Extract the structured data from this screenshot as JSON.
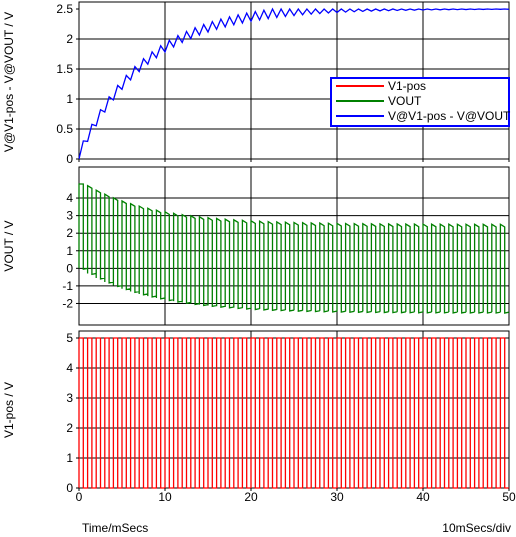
{
  "colors": {
    "v1pos": "#ff0000",
    "vout": "#008000",
    "diff": "#0000ff",
    "grid": "#000000",
    "legend_border": "#0000ff"
  },
  "footer": {
    "xlabel": "Time/mSecs",
    "scale": "10mSecs/div"
  },
  "legend": {
    "entries": [
      "V1-pos",
      "VOUT",
      "V@V1-pos - V@VOUT"
    ]
  },
  "chart_data": [
    {
      "type": "line",
      "ylabel": "V@V1-pos - V@VOUT / V",
      "xlim": [
        0,
        50
      ],
      "ylim": [
        0,
        2.5
      ],
      "xticks": [
        "0",
        "10",
        "20",
        "30",
        "40",
        "50"
      ],
      "yticks": [
        "0",
        "0.5",
        "1",
        "1.5",
        "2",
        "2.5"
      ],
      "grid": true,
      "legend_position": "right",
      "series": [
        {
          "name": "V@V1-pos - V@VOUT",
          "waveform": "rc-charging-with-ripple",
          "period_ms": 1,
          "start": 0,
          "final": 2.5,
          "tau_ms": 8,
          "ripple_v": 0.15
        }
      ]
    },
    {
      "type": "line",
      "ylabel": "VOUT / V",
      "xlim": [
        0,
        50
      ],
      "ylim": [
        -2.6,
        4.8
      ],
      "yticks": [
        "4",
        "3",
        "2",
        "1",
        "0",
        "-1",
        "-2"
      ],
      "grid": true,
      "series": [
        {
          "name": "VOUT",
          "waveform": "square-minus-capacitor",
          "period_ms": 1,
          "start_high": 4.8,
          "settled_high": 2.5,
          "settled_low": -2.5,
          "tau_ms": 8
        }
      ]
    },
    {
      "type": "line",
      "ylabel": "V1-pos / V",
      "xlim": [
        0,
        50
      ],
      "ylim": [
        0,
        5.2
      ],
      "xticks": [
        "0",
        "10",
        "20",
        "30",
        "40",
        "50"
      ],
      "yticks": [
        "0",
        "1",
        "2",
        "3",
        "4",
        "5"
      ],
      "grid": true,
      "series": [
        {
          "name": "V1-pos",
          "waveform": "square",
          "period_ms": 1,
          "low": 0,
          "high": 5
        }
      ]
    }
  ]
}
